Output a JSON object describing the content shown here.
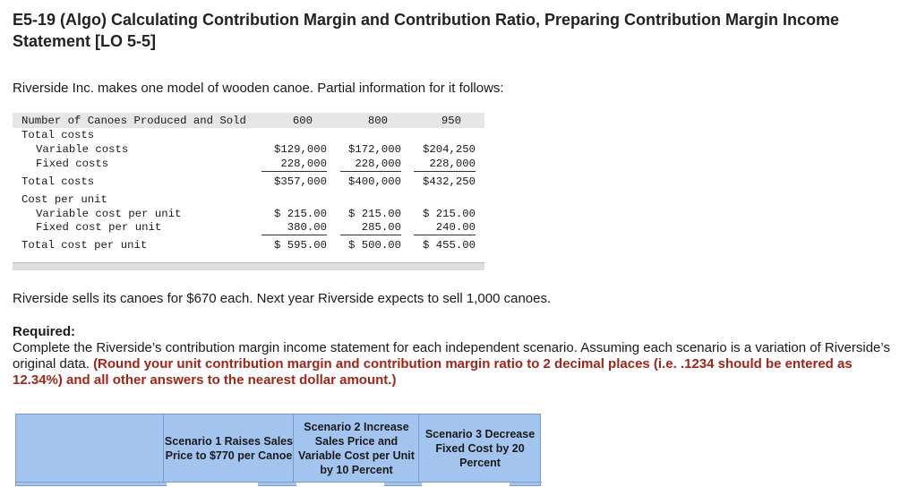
{
  "title": "E5-19 (Algo) Calculating Contribution Margin and Contribution Ratio, Preparing Contribution Margin Income Statement [LO 5-5]",
  "intro": "Riverside Inc. makes one model of wooden canoe. Partial information for it follows:",
  "table": {
    "header": {
      "label": "Number of Canoes Produced and Sold",
      "cols": [
        "600",
        "800",
        "950"
      ]
    },
    "rows": [
      {
        "label": "Total costs",
        "indent": 0,
        "values": [
          "",
          "",
          ""
        ]
      },
      {
        "label": "Variable costs",
        "indent": 1,
        "values": [
          "$129,000",
          "$172,000",
          "$204,250"
        ]
      },
      {
        "label": "Fixed costs",
        "indent": 1,
        "values": [
          "228,000",
          "228,000",
          "228,000"
        ]
      },
      {
        "label": "Total costs",
        "indent": 0,
        "values": [
          "$357,000",
          "$400,000",
          "$432,250"
        ]
      },
      {
        "label": "Cost per unit",
        "indent": 0,
        "values": [
          "",
          "",
          ""
        ]
      },
      {
        "label": "Variable cost per unit",
        "indent": 1,
        "values": [
          "$ 215.00",
          "$ 215.00",
          "$ 215.00"
        ]
      },
      {
        "label": "Fixed cost per unit",
        "indent": 1,
        "values": [
          "380.00",
          "285.00",
          "240.00"
        ]
      },
      {
        "label": "Total cost per unit",
        "indent": 0,
        "values": [
          "$ 595.00",
          "$ 500.00",
          "$ 455.00"
        ]
      }
    ]
  },
  "sells_text": "Riverside sells its canoes for $670 each. Next year Riverside expects to sell 1,000 canoes.",
  "required": {
    "heading": "Required:",
    "text": "Complete the Riverside’s contribution margin income statement for each independent scenario. Assuming each scenario is a variation of Riverside’s original data. ",
    "red_text": "(Round your unit contribution margin and contribution margin ratio to 2 decimal places (i.e. .1234 should be entered as 12.34%) and all other answers to the nearest dollar amount.)"
  },
  "scenarios": {
    "blank": "",
    "s1": "Scenario 1 Raises Sales Price to $770 per Canoe",
    "s2": "Scenario 2 Increase Sales Price and Variable Cost per Unit by 10 Percent",
    "s3": "Scenario 3 Decrease Fixed Cost by 20 Percent"
  },
  "colors": {
    "header_blue": "#a3c4ee",
    "red_note": "#a0261a"
  }
}
